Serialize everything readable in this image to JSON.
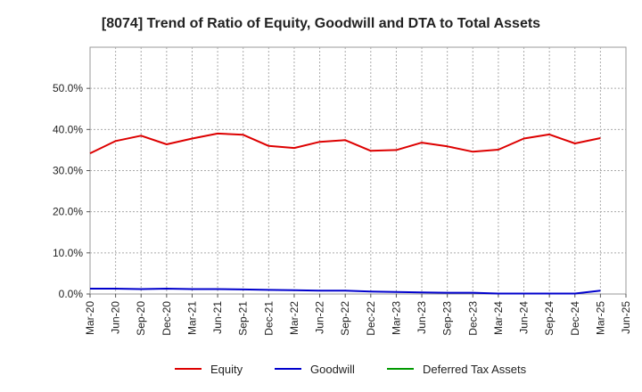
{
  "chart_data": {
    "type": "line",
    "title": "[8074]  Trend of Ratio of Equity, Goodwill and DTA to Total Assets",
    "xlabel": "",
    "ylabel": "",
    "categories": [
      "Mar-20",
      "Jun-20",
      "Sep-20",
      "Dec-20",
      "Mar-21",
      "Jun-21",
      "Sep-21",
      "Dec-21",
      "Mar-22",
      "Jun-22",
      "Sep-22",
      "Dec-22",
      "Mar-23",
      "Jun-23",
      "Sep-23",
      "Dec-23",
      "Mar-24",
      "Jun-24",
      "Sep-24",
      "Dec-24",
      "Mar-25",
      "Jun-25"
    ],
    "ylim": [
      0,
      60
    ],
    "yticks": [
      0,
      10,
      20,
      30,
      40,
      50
    ],
    "ytick_labels": [
      "0.0%",
      "10.0%",
      "20.0%",
      "30.0%",
      "40.0%",
      "50.0%"
    ],
    "grid": true,
    "legend_position": "bottom",
    "series": [
      {
        "name": "Equity",
        "color": "#dd0000",
        "values": [
          34.2,
          37.2,
          38.5,
          36.4,
          37.8,
          39.0,
          38.7,
          36.0,
          35.5,
          37.0,
          37.4,
          34.8,
          35.0,
          36.8,
          35.9,
          34.6,
          35.1,
          37.8,
          38.8,
          36.6,
          37.9,
          null
        ]
      },
      {
        "name": "Goodwill",
        "color": "#0000cc",
        "values": [
          1.3,
          1.3,
          1.2,
          1.3,
          1.2,
          1.2,
          1.1,
          1.0,
          0.9,
          0.8,
          0.8,
          0.6,
          0.5,
          0.4,
          0.3,
          0.3,
          0.1,
          0.1,
          0.1,
          0.1,
          0.8,
          null
        ]
      },
      {
        "name": "Deferred Tax Assets",
        "color": "#009900",
        "values": [
          null,
          null,
          null,
          null,
          null,
          null,
          null,
          null,
          null,
          null,
          null,
          null,
          null,
          null,
          null,
          null,
          null,
          null,
          null,
          null,
          null,
          null
        ]
      }
    ]
  }
}
